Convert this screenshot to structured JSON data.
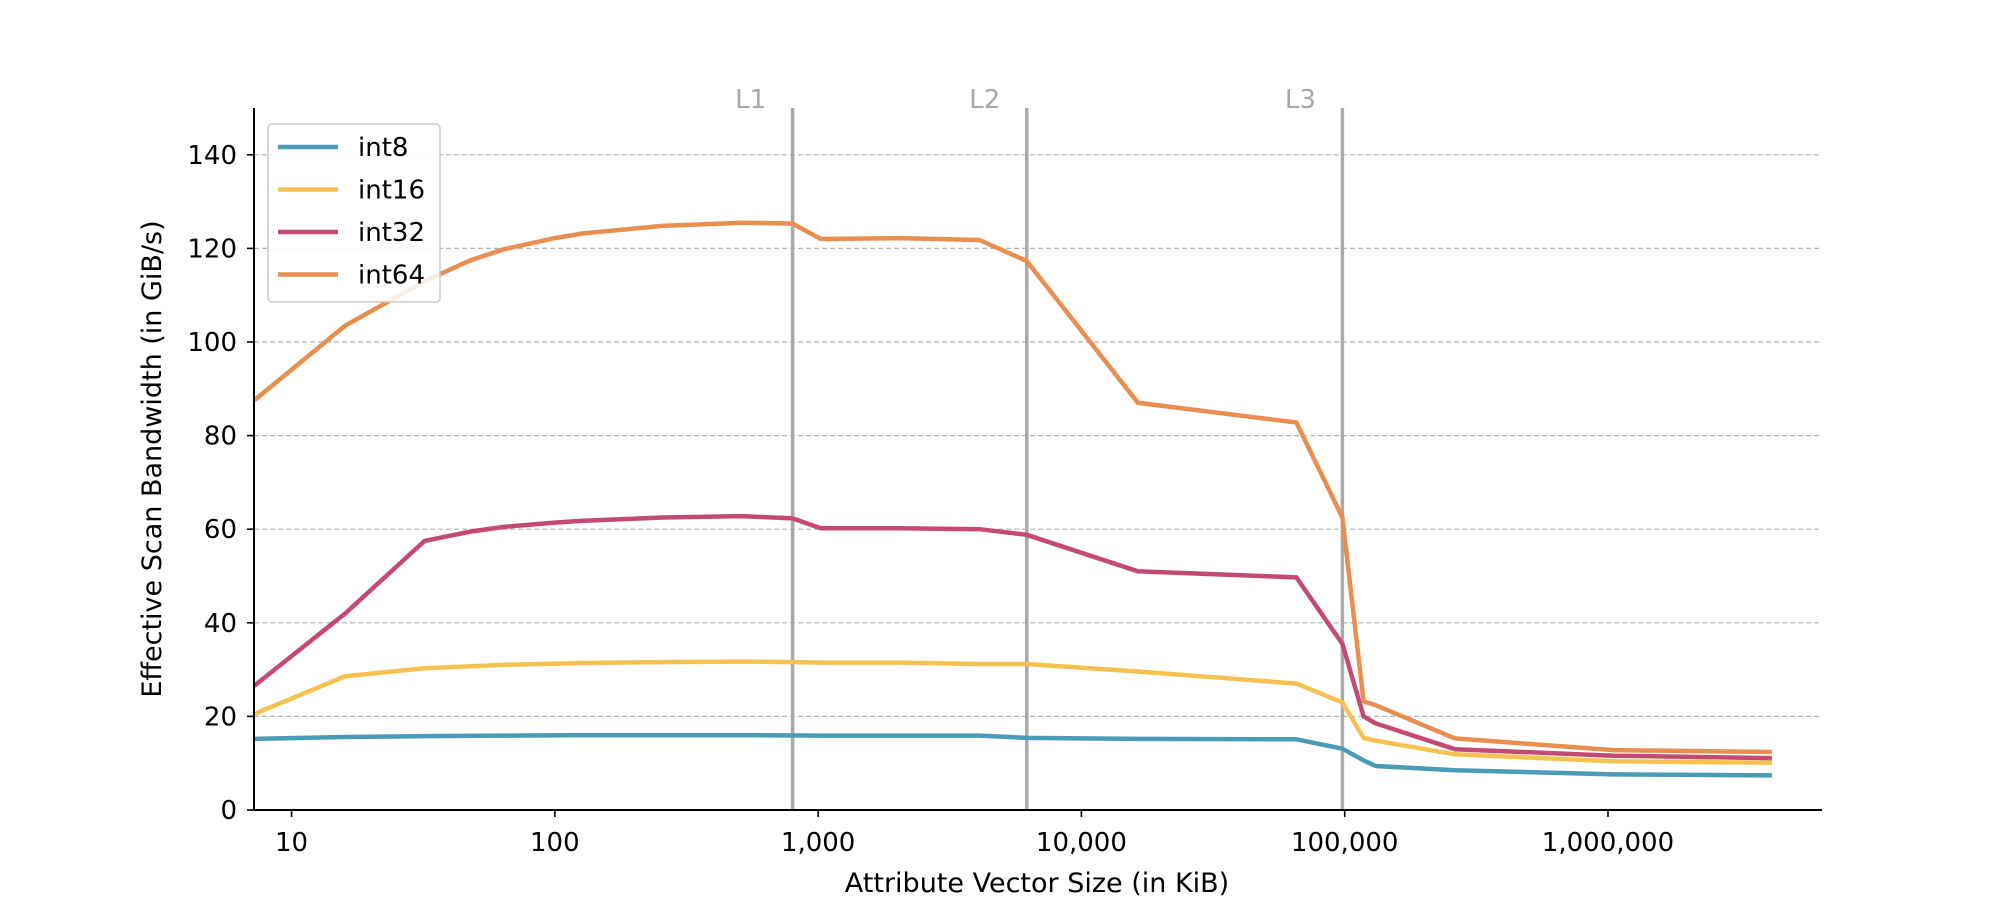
{
  "chart_data": {
    "type": "line",
    "xlabel": "Attribute Vector Size (in KiB)",
    "ylabel": "Effective Scan Bandwidth (in GiB/s)",
    "x_scale": "log",
    "xlim": [
      7.2,
      6500000
    ],
    "ylim": [
      0,
      150
    ],
    "grid": "horizontal dashed",
    "legend_placement": "top-left",
    "x_ticks": [
      {
        "value": 10,
        "label": "10"
      },
      {
        "value": 100,
        "label": "100"
      },
      {
        "value": 1000,
        "label": "1,000"
      },
      {
        "value": 10000,
        "label": "10,000"
      },
      {
        "value": 100000,
        "label": "100,000"
      },
      {
        "value": 1000000,
        "label": "1,000,000"
      }
    ],
    "y_ticks": [
      {
        "value": 0,
        "label": "0"
      },
      {
        "value": 20,
        "label": "20"
      },
      {
        "value": 40,
        "label": "40"
      },
      {
        "value": 60,
        "label": "60"
      },
      {
        "value": 80,
        "label": "80"
      },
      {
        "value": 100,
        "label": "100"
      },
      {
        "value": 120,
        "label": "120"
      },
      {
        "value": 140,
        "label": "140"
      }
    ],
    "cache_lines": [
      {
        "label": "L1",
        "x": 800
      },
      {
        "label": "L2",
        "x": 6200
      },
      {
        "label": "L3",
        "x": 98000
      }
    ],
    "series": [
      {
        "name": "int8",
        "color": "#4a9bb8",
        "points": [
          [
            7.2,
            15.2
          ],
          [
            16,
            15.6
          ],
          [
            32,
            15.8
          ],
          [
            64,
            15.9
          ],
          [
            128,
            16.0
          ],
          [
            256,
            16.0
          ],
          [
            512,
            16.0
          ],
          [
            1024,
            15.9
          ],
          [
            2048,
            15.9
          ],
          [
            4096,
            15.9
          ],
          [
            6200,
            15.4
          ],
          [
            16384,
            15.2
          ],
          [
            65536,
            15.1
          ],
          [
            98000,
            13.1
          ],
          [
            118000,
            10.6
          ],
          [
            131072,
            9.4
          ],
          [
            262144,
            8.5
          ],
          [
            1048576,
            7.6
          ],
          [
            4194304,
            7.4
          ]
        ]
      },
      {
        "name": "int16",
        "color": "#f5c24f",
        "points": [
          [
            7.2,
            20.5
          ],
          [
            16,
            28.6
          ],
          [
            32,
            30.3
          ],
          [
            64,
            31.0
          ],
          [
            128,
            31.4
          ],
          [
            256,
            31.6
          ],
          [
            512,
            31.7
          ],
          [
            800,
            31.6
          ],
          [
            1024,
            31.5
          ],
          [
            2048,
            31.5
          ],
          [
            4096,
            31.2
          ],
          [
            6200,
            31.2
          ],
          [
            16384,
            29.6
          ],
          [
            65536,
            27.0
          ],
          [
            98000,
            23.0
          ],
          [
            118000,
            15.4
          ],
          [
            131072,
            14.8
          ],
          [
            262144,
            11.9
          ],
          [
            1048576,
            10.4
          ],
          [
            4194304,
            10.1
          ]
        ]
      },
      {
        "name": "int32",
        "color": "#c54a72",
        "points": [
          [
            7.2,
            26.5
          ],
          [
            16,
            42.0
          ],
          [
            32,
            57.5
          ],
          [
            48,
            59.5
          ],
          [
            64,
            60.5
          ],
          [
            100,
            61.4
          ],
          [
            128,
            61.8
          ],
          [
            256,
            62.5
          ],
          [
            512,
            62.8
          ],
          [
            800,
            62.3
          ],
          [
            1024,
            60.2
          ],
          [
            2048,
            60.2
          ],
          [
            4096,
            60.0
          ],
          [
            6200,
            58.8
          ],
          [
            16384,
            51.0
          ],
          [
            65536,
            49.7
          ],
          [
            98000,
            35.5
          ],
          [
            118000,
            20.0
          ],
          [
            131072,
            18.5
          ],
          [
            262144,
            13.0
          ],
          [
            1048576,
            11.6
          ],
          [
            4194304,
            11.1
          ]
        ]
      },
      {
        "name": "int64",
        "color": "#e88f4f",
        "points": [
          [
            7.2,
            87.5
          ],
          [
            16,
            103.5
          ],
          [
            32,
            113.0
          ],
          [
            48,
            117.5
          ],
          [
            64,
            119.8
          ],
          [
            100,
            122.2
          ],
          [
            128,
            123.2
          ],
          [
            256,
            124.8
          ],
          [
            512,
            125.5
          ],
          [
            800,
            125.3
          ],
          [
            1024,
            122.0
          ],
          [
            2048,
            122.2
          ],
          [
            4096,
            121.8
          ],
          [
            6200,
            117.3
          ],
          [
            16384,
            87.0
          ],
          [
            65536,
            82.8
          ],
          [
            98000,
            62.5
          ],
          [
            118000,
            23.2
          ],
          [
            131072,
            22.4
          ],
          [
            262144,
            15.3
          ],
          [
            1048576,
            12.8
          ],
          [
            4194304,
            12.4
          ]
        ]
      }
    ]
  }
}
